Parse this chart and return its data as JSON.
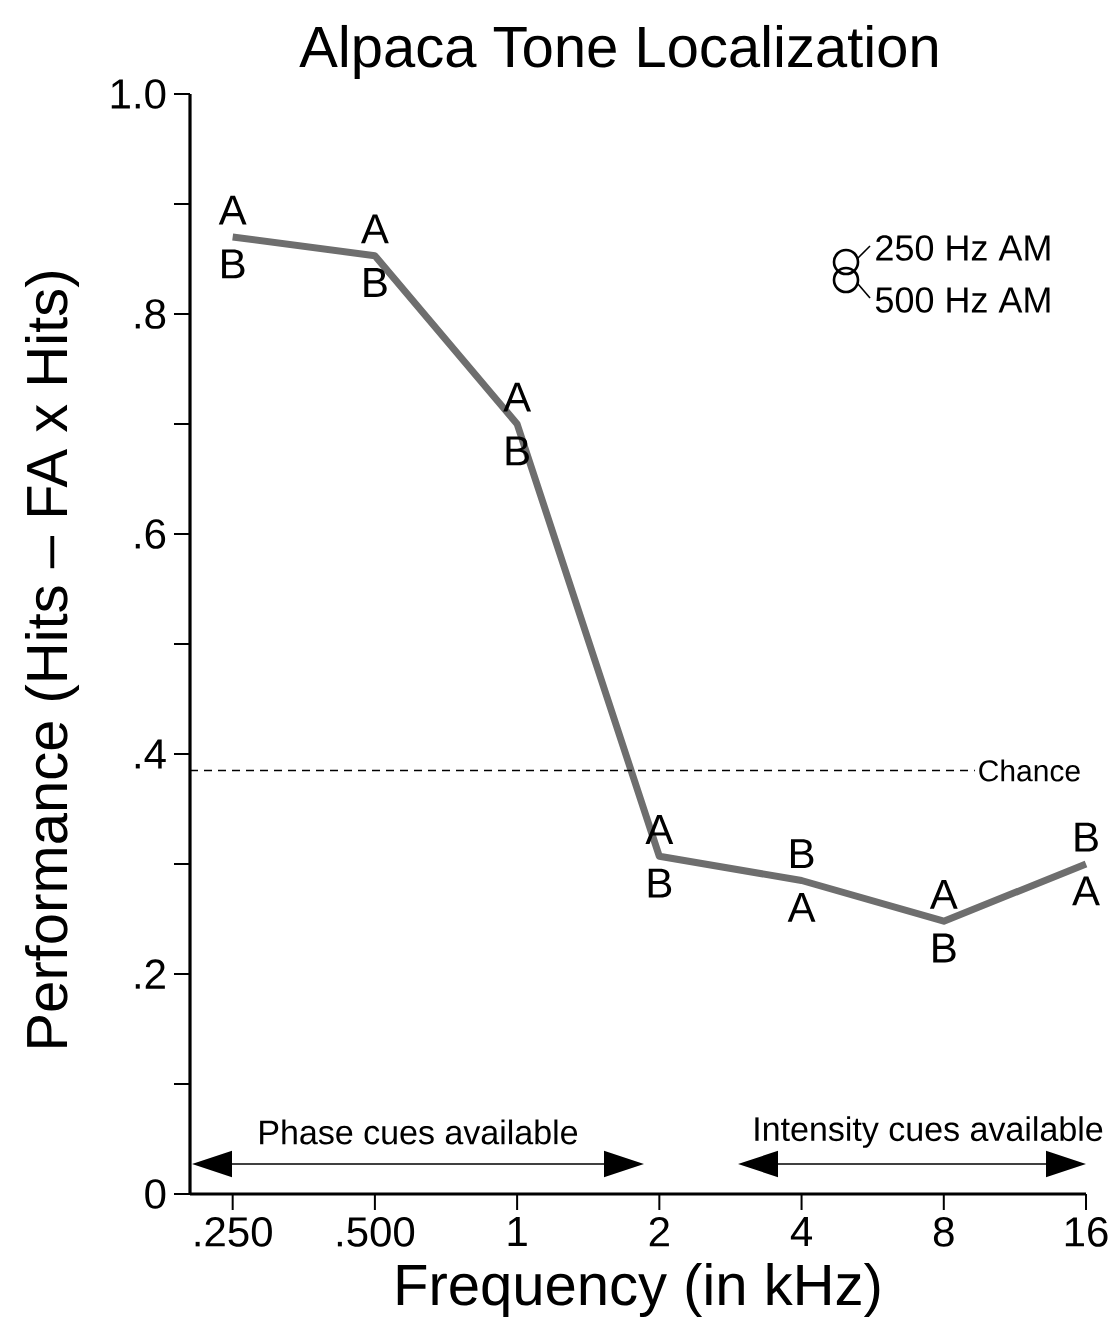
{
  "chart_data": {
    "type": "line",
    "title": "Alpaca Tone Localization",
    "xlabel": "Frequency (in kHz)",
    "ylabel": "Performance (Hits – FA x Hits)",
    "categories": [
      ".250",
      ".500",
      "1",
      "2",
      "4",
      "8",
      "16"
    ],
    "series": [
      {
        "color": "#6e6e6e",
        "values": [
          0.87,
          0.853,
          0.7,
          0.307,
          0.285,
          0.248,
          0.3
        ]
      }
    ],
    "line_style": "solid",
    "ylim": [
      0,
      1
    ],
    "yticks": [
      {
        "value": 0,
        "label": "0"
      },
      {
        "value": 0.1,
        "label": null
      },
      {
        "value": 0.2,
        "label": ".2"
      },
      {
        "value": 0.3,
        "label": null
      },
      {
        "value": 0.4,
        "label": ".4"
      },
      {
        "value": 0.5,
        "label": null
      },
      {
        "value": 0.6,
        "label": ".6"
      },
      {
        "value": 0.7,
        "label": null
      },
      {
        "value": 0.8,
        "label": ".8"
      },
      {
        "value": 0.9,
        "label": null
      },
      {
        "value": 1.0,
        "label": "1.0"
      }
    ],
    "ref_lines": [
      {
        "axis": "y",
        "value": 0.385,
        "label": "Chance",
        "line_style": "dashed"
      }
    ],
    "annotations": [
      {
        "text": "A",
        "x": ".250",
        "y": 0.87
      },
      {
        "text": "B",
        "x": ".250",
        "y": 0.87
      },
      {
        "text": "A",
        "x": ".500",
        "y": 0.853
      },
      {
        "text": "B",
        "x": ".500",
        "y": 0.853
      },
      {
        "text": "A",
        "x": "1",
        "y": 0.7
      },
      {
        "text": "B",
        "x": "1",
        "y": 0.7
      },
      {
        "text": "A",
        "x": "2",
        "y": 0.307
      },
      {
        "text": "B",
        "x": "2",
        "y": 0.307
      },
      {
        "text": "B",
        "x": "4",
        "y": 0.285
      },
      {
        "text": "A",
        "x": "4",
        "y": 0.285
      },
      {
        "text": "A",
        "x": "8",
        "y": 0.248
      },
      {
        "text": "B",
        "x": "8",
        "y": 0.248
      },
      {
        "text": "B",
        "x": "16",
        "y": 0.3
      },
      {
        "text": "A",
        "x": "16",
        "y": 0.3
      },
      "250 Hz AM",
      "500 Hz AM",
      "Phase cues available",
      "Intensity cues available"
    ]
  }
}
